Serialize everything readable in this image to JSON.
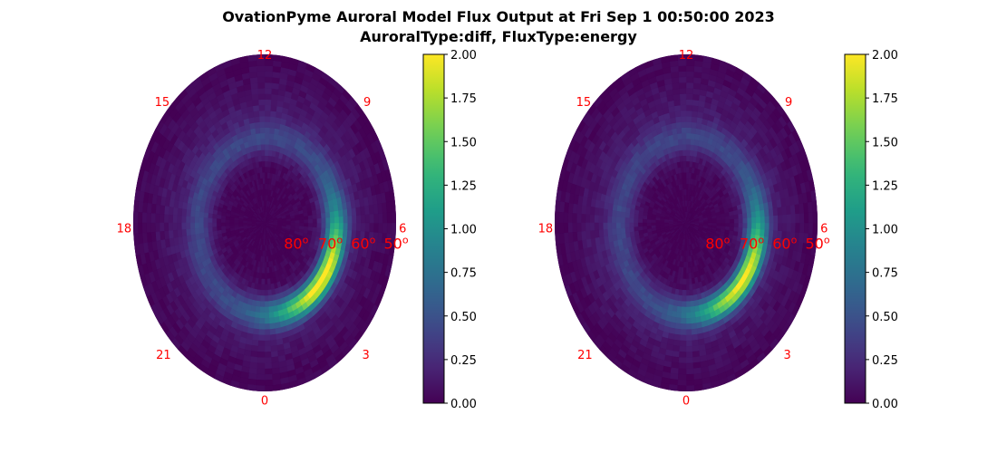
{
  "figure": {
    "title_line1": "OvationPyme Auroral Model Flux Output at Fri Sep  1 00:50:00 2023",
    "title_line2": "AuroralType:diff, FluxType:energy"
  },
  "chart_data": [
    {
      "type": "heatmap",
      "projection": "polar (magnetic latitude vs magnetic local time)",
      "title": "",
      "mlt_labels": [
        "12",
        "15",
        "9",
        "18",
        "6",
        "21",
        "3",
        "0"
      ],
      "latitude_labels": [
        "80$^o$",
        "70$^o$",
        "60$^o$",
        "50$^o$"
      ],
      "latitude_label_text": [
        "80",
        "70",
        "60",
        "50"
      ],
      "latitude_label_sup": "o",
      "label_color": "#ff0000",
      "colormap": "viridis",
      "colorbar": {
        "vmin": 0.0,
        "vmax": 2.0,
        "ticks": [
          "0.00",
          "0.25",
          "0.50",
          "0.75",
          "1.00",
          "1.25",
          "1.50",
          "1.75",
          "2.00"
        ]
      },
      "auroral_oval": {
        "colatitude_center_deg": 21,
        "peak_mlt_hours": [
          1,
          6
        ],
        "peak_value": 2.0
      }
    },
    {
      "type": "heatmap",
      "projection": "polar (magnetic latitude vs magnetic local time)",
      "title": "",
      "mlt_labels": [
        "12",
        "15",
        "9",
        "18",
        "6",
        "21",
        "3",
        "0"
      ],
      "latitude_labels": [
        "80$^o$",
        "70$^o$",
        "60$^o$",
        "50$^o$"
      ],
      "latitude_label_text": [
        "80",
        "70",
        "60",
        "50"
      ],
      "latitude_label_sup": "o",
      "label_color": "#ff0000",
      "colormap": "viridis",
      "colorbar": {
        "vmin": 0.0,
        "vmax": 2.0,
        "ticks": [
          "0.00",
          "0.25",
          "0.50",
          "0.75",
          "1.00",
          "1.25",
          "1.50",
          "1.75",
          "2.00"
        ]
      },
      "auroral_oval": {
        "colatitude_center_deg": 21,
        "peak_mlt_hours": [
          1,
          6
        ],
        "peak_value": 1.9
      }
    }
  ]
}
